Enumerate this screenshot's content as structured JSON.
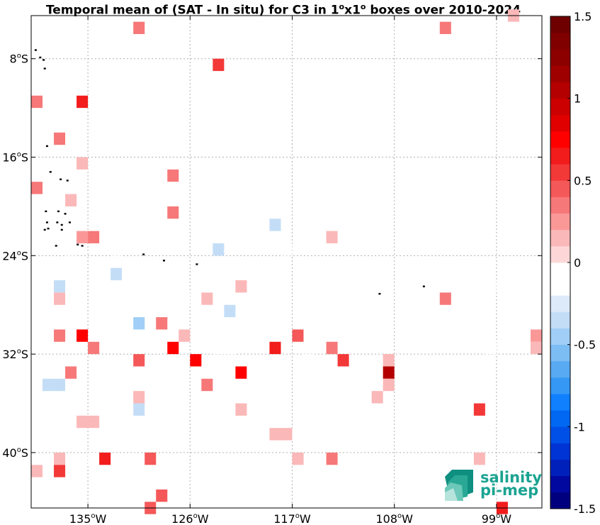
{
  "title": {
    "text_before": "Temporal mean of (SAT - In situ) for C3 in 1",
    "deg": "o",
    "text_mid": "x1",
    "text_after": " boxes over 2010-2024"
  },
  "map": {
    "lon_range": [
      -140,
      -95
    ],
    "lat_range": [
      -44.5,
      -4.5
    ],
    "grid": true,
    "x_ticks": [
      {
        "lon": -135,
        "num": "135",
        "hemi": "W"
      },
      {
        "lon": -126,
        "num": "126",
        "hemi": "W"
      },
      {
        "lon": -117,
        "num": "117",
        "hemi": "W"
      },
      {
        "lon": -108,
        "num": "108",
        "hemi": "W"
      },
      {
        "lon": -99,
        "num": "99",
        "hemi": "W"
      }
    ],
    "y_ticks": [
      {
        "lat": -8,
        "num": "8",
        "hemi": "S"
      },
      {
        "lat": -16,
        "num": "16",
        "hemi": "S"
      },
      {
        "lat": -24,
        "num": "24",
        "hemi": "S"
      },
      {
        "lat": -32,
        "num": "32",
        "hemi": "S"
      },
      {
        "lat": -40,
        "num": "40",
        "hemi": "S"
      }
    ],
    "boxes": [
      [
        -130.5,
        -5.5,
        0.3
      ],
      [
        -103.5,
        -5.5,
        0.3
      ],
      [
        -97.5,
        -4.5,
        0.1
      ],
      [
        -123.5,
        -8.5,
        0.5
      ],
      [
        -139.5,
        -11.5,
        0.3
      ],
      [
        -135.5,
        -11.5,
        0.6
      ],
      [
        -137.5,
        -14.5,
        0.3
      ],
      [
        -135.5,
        -16.5,
        0.1
      ],
      [
        -138.5,
        -17.5,
        -0.1
      ],
      [
        -127.5,
        -17.5,
        0.3
      ],
      [
        -139.5,
        -18.5,
        0.3
      ],
      [
        -127.5,
        -18.5,
        -0.1
      ],
      [
        -136.5,
        -19.5,
        0.1
      ],
      [
        -138.5,
        -20.5,
        -0.1
      ],
      [
        -127.5,
        -20.5,
        0.3
      ],
      [
        -130.5,
        -21.5,
        -0.1
      ],
      [
        -118.5,
        -21.5,
        -0.4
      ],
      [
        -135.5,
        -22.5,
        0.2
      ],
      [
        -134.5,
        -22.5,
        0.3
      ],
      [
        -113.5,
        -22.5,
        0.1
      ],
      [
        -136.5,
        -23.5,
        -0.2
      ],
      [
        -123.5,
        -23.5,
        -0.4
      ],
      [
        -117.5,
        -23.5,
        -0.1
      ],
      [
        -132.5,
        -24.5,
        -0.1
      ],
      [
        -132.5,
        -25.5,
        -0.3
      ],
      [
        -131.5,
        -25.5,
        -0.1
      ],
      [
        -120.5,
        -25.5,
        -0.1
      ],
      [
        -119.5,
        -25.5,
        -0.1
      ],
      [
        -137.5,
        -26.5,
        -0.4
      ],
      [
        -121.5,
        -26.5,
        0.1
      ],
      [
        -98.5,
        -26.5,
        -0.1
      ],
      [
        -137.5,
        -27.5,
        0.1
      ],
      [
        -130.5,
        -27.5,
        -0.1
      ],
      [
        -126.5,
        -27.5,
        -0.1
      ],
      [
        -124.5,
        -27.5,
        0.1
      ],
      [
        -103.5,
        -27.5,
        0.3
      ],
      [
        -122.5,
        -28.5,
        -0.3
      ],
      [
        -130.5,
        -29.5,
        -0.5
      ],
      [
        -128.5,
        -29.5,
        0.3
      ],
      [
        -138.5,
        -30.5,
        -0.1
      ],
      [
        -137.5,
        -30.5,
        0.3
      ],
      [
        -135.5,
        -30.5,
        0.7
      ],
      [
        -126.5,
        -30.5,
        0.1
      ],
      [
        -124.5,
        -30.5,
        -0.2
      ],
      [
        -116.5,
        -30.5,
        0.4
      ],
      [
        -115.5,
        -30.5,
        -0.2
      ],
      [
        -104.5,
        -30.5,
        -0.1
      ],
      [
        -95.5,
        -30.5,
        0.2
      ],
      [
        -134.5,
        -31.5,
        0.3
      ],
      [
        -127.5,
        -31.5,
        0.7
      ],
      [
        -123.5,
        -31.5,
        -0.2
      ],
      [
        -122.5,
        -31.5,
        -0.1
      ],
      [
        -118.5,
        -31.5,
        0.6
      ],
      [
        -113.5,
        -31.5,
        0.3
      ],
      [
        -99.5,
        -31.5,
        -0.1
      ],
      [
        -95.5,
        -31.5,
        0.1
      ],
      [
        -130.5,
        -32.5,
        0.4
      ],
      [
        -125.5,
        -32.5,
        0.7
      ],
      [
        -115.5,
        -32.5,
        -0.1
      ],
      [
        -112.5,
        -32.5,
        0.5
      ],
      [
        -108.5,
        -32.5,
        0.1
      ],
      [
        -136.5,
        -33.5,
        0.3
      ],
      [
        -121.5,
        -33.5,
        0.7
      ],
      [
        -120.5,
        -33.5,
        -0.1
      ],
      [
        -108.5,
        -33.5,
        1.0
      ],
      [
        -138.5,
        -34.5,
        -0.4
      ],
      [
        -137.5,
        -34.5,
        -0.4
      ],
      [
        -124.5,
        -34.5,
        0.3
      ],
      [
        -108.5,
        -34.5,
        0.1
      ],
      [
        -130.5,
        -35.5,
        0.1
      ],
      [
        -109.5,
        -35.5,
        0.1
      ],
      [
        -130.5,
        -36.5,
        -0.4
      ],
      [
        -121.5,
        -36.5,
        0.1
      ],
      [
        -100.5,
        -36.5,
        0.5
      ],
      [
        -135.5,
        -37.5,
        0.1
      ],
      [
        -134.5,
        -37.5,
        0.1
      ],
      [
        -119.5,
        -37.5,
        -0.2
      ],
      [
        -118.5,
        -38.5,
        0.1
      ],
      [
        -117.5,
        -38.5,
        0.1
      ],
      [
        -116.5,
        -38.5,
        -0.1
      ],
      [
        -137.5,
        -40.5,
        0.1
      ],
      [
        -134.5,
        -40.5,
        -0.1
      ],
      [
        -133.5,
        -40.5,
        0.6
      ],
      [
        -129.5,
        -40.5,
        0.4
      ],
      [
        -116.5,
        -40.5,
        0.1
      ],
      [
        -113.5,
        -40.5,
        0.3
      ],
      [
        -100.5,
        -40.5,
        0.1
      ],
      [
        -139.5,
        -41.5,
        0.1
      ],
      [
        -137.5,
        -41.5,
        0.5
      ],
      [
        -109.5,
        -41.5,
        -0.1
      ],
      [
        -97.5,
        -41.5,
        -0.1
      ],
      [
        -109.5,
        -42.5,
        -0.1
      ],
      [
        -109.5,
        -43.5,
        -0.1
      ],
      [
        -128.5,
        -43.5,
        0.4
      ],
      [
        -129.5,
        -44.5,
        0.4
      ],
      [
        -98.5,
        -44.5,
        0.6
      ]
    ],
    "islands": [
      [
        -139.6,
        -7.3
      ],
      [
        -139.2,
        -7.9
      ],
      [
        -138.9,
        -8.1
      ],
      [
        -138.8,
        -8.8
      ],
      [
        -138.6,
        -15.1
      ],
      [
        -138.3,
        -17.2
      ],
      [
        -137.4,
        -17.8
      ],
      [
        -136.8,
        -17.9
      ],
      [
        -138.7,
        -20.4
      ],
      [
        -137.0,
        -20.6
      ],
      [
        -137.6,
        -20.4
      ],
      [
        -138.6,
        -21.3
      ],
      [
        -137.7,
        -21.3
      ],
      [
        -137.3,
        -21.5
      ],
      [
        -136.6,
        -21.3
      ],
      [
        -138.5,
        -21.8
      ],
      [
        -138.8,
        -21.9
      ],
      [
        -137.3,
        -21.9
      ],
      [
        -135.9,
        -23.1
      ],
      [
        -135.5,
        -23.2
      ],
      [
        -137.8,
        -23.2
      ],
      [
        -130.1,
        -23.9
      ],
      [
        -128.3,
        -24.4
      ],
      [
        -125.4,
        -24.7
      ],
      [
        -109.3,
        -27.1
      ],
      [
        -105.4,
        -26.5
      ]
    ]
  },
  "colorbar": {
    "vmin": -1.5,
    "vmax": 1.5,
    "ticks": [
      "1.5",
      "1",
      "0.5",
      "0",
      "-0.5",
      "-1",
      "-1.5"
    ],
    "colors": [
      "#00007f",
      "#0008a0",
      "#0020bb",
      "#0034d4",
      "#0050e8",
      "#0068f2",
      "#1080ff",
      "#3498f4",
      "#58aaf2",
      "#7cbdf4",
      "#a0cef6",
      "#c4ddf7",
      "#dceaf9",
      "#ffffff",
      "#ffffff",
      "#fdd7d7",
      "#fbb8b8",
      "#fa9898",
      "#f77878",
      "#f55858",
      "#f33838",
      "#f21c1c",
      "#ff0000",
      "#e00000",
      "#cc0000",
      "#b40000",
      "#9e0000",
      "#8c0000",
      "#800000",
      "#6e0000"
    ]
  },
  "logo": {
    "line1": "salinity",
    "line2": "pi-mep"
  }
}
